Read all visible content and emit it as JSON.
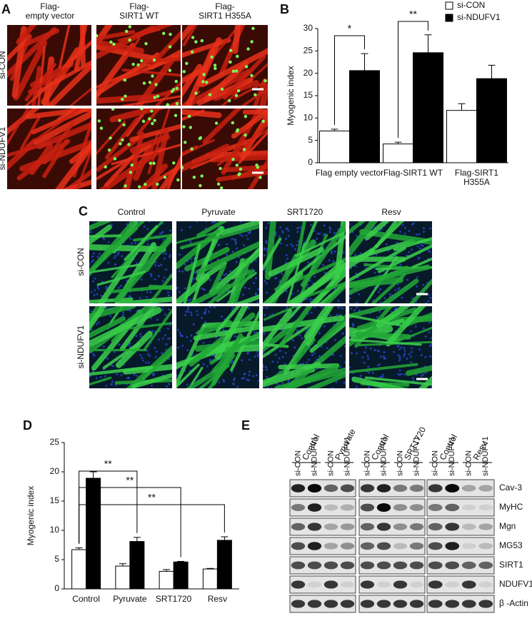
{
  "panel_labels": [
    "A",
    "B",
    "C",
    "D",
    "E"
  ],
  "panel_a": {
    "columns": [
      "Flag-\nempty vector",
      "Flag-\nSIRT1 WT",
      "Flag-\nSIRT1 H355A"
    ],
    "rows": [
      "si-CON",
      "si-NDUFV1"
    ]
  },
  "panel_c": {
    "columns": [
      "Control",
      "Pyruvate",
      "SRT1720",
      "Resv"
    ],
    "rows": [
      "si-CON",
      "si-NDUFV1"
    ]
  },
  "chart_data": [
    {
      "type": "bar",
      "y_label": "Myogenic index",
      "categories": [
        "Flag empty vector",
        "Flag-SIRT1 WT",
        "Flag-SIRT1 H355A"
      ],
      "series": [
        {
          "name": "si-CON",
          "color": "#ffffff",
          "values": [
            7.1,
            4.2,
            11.7
          ],
          "errors": [
            0.4,
            0.4,
            1.5
          ]
        },
        {
          "name": "si-NDUFV1",
          "color": "#000000",
          "values": [
            20.6,
            24.6,
            18.8
          ],
          "errors": [
            3.8,
            4.0,
            3.0
          ]
        }
      ],
      "ylim": [
        0,
        30
      ],
      "yticks": [
        0,
        5,
        10,
        15,
        20,
        25,
        30
      ],
      "legend": "upper right",
      "annotations": [
        "*",
        "**"
      ]
    },
    {
      "type": "bar",
      "y_label": "Myogenic index",
      "categories": [
        "Control",
        "Pyruvate",
        "SRT1720",
        "Resv"
      ],
      "series": [
        {
          "color": "#ffffff",
          "values": [
            6.7,
            3.9,
            3.0,
            3.4
          ],
          "errors": [
            0.3,
            0.4,
            0.3,
            0.1
          ]
        },
        {
          "color": "#000000",
          "values": [
            18.9,
            8.1,
            4.6,
            8.3
          ],
          "errors": [
            1.1,
            0.7,
            0.1,
            0.6
          ]
        }
      ],
      "ylim": [
        0,
        25
      ],
      "yticks": [
        0,
        5,
        10,
        15,
        20,
        25
      ],
      "annotations": [
        "**",
        "**",
        "**"
      ]
    }
  ],
  "panel_e": {
    "groups": [
      [
        "Control",
        "Pyruvate"
      ],
      [
        "Control",
        "SRT1720"
      ],
      [
        "Control",
        "Resv"
      ]
    ],
    "lanes": [
      "si-CON",
      "si-NDUFV1"
    ],
    "proteins": [
      "Cav-3",
      "MyHC",
      "Mgn",
      "MG53",
      "SIRT1",
      "NDUFV1",
      "β -Actin"
    ]
  }
}
